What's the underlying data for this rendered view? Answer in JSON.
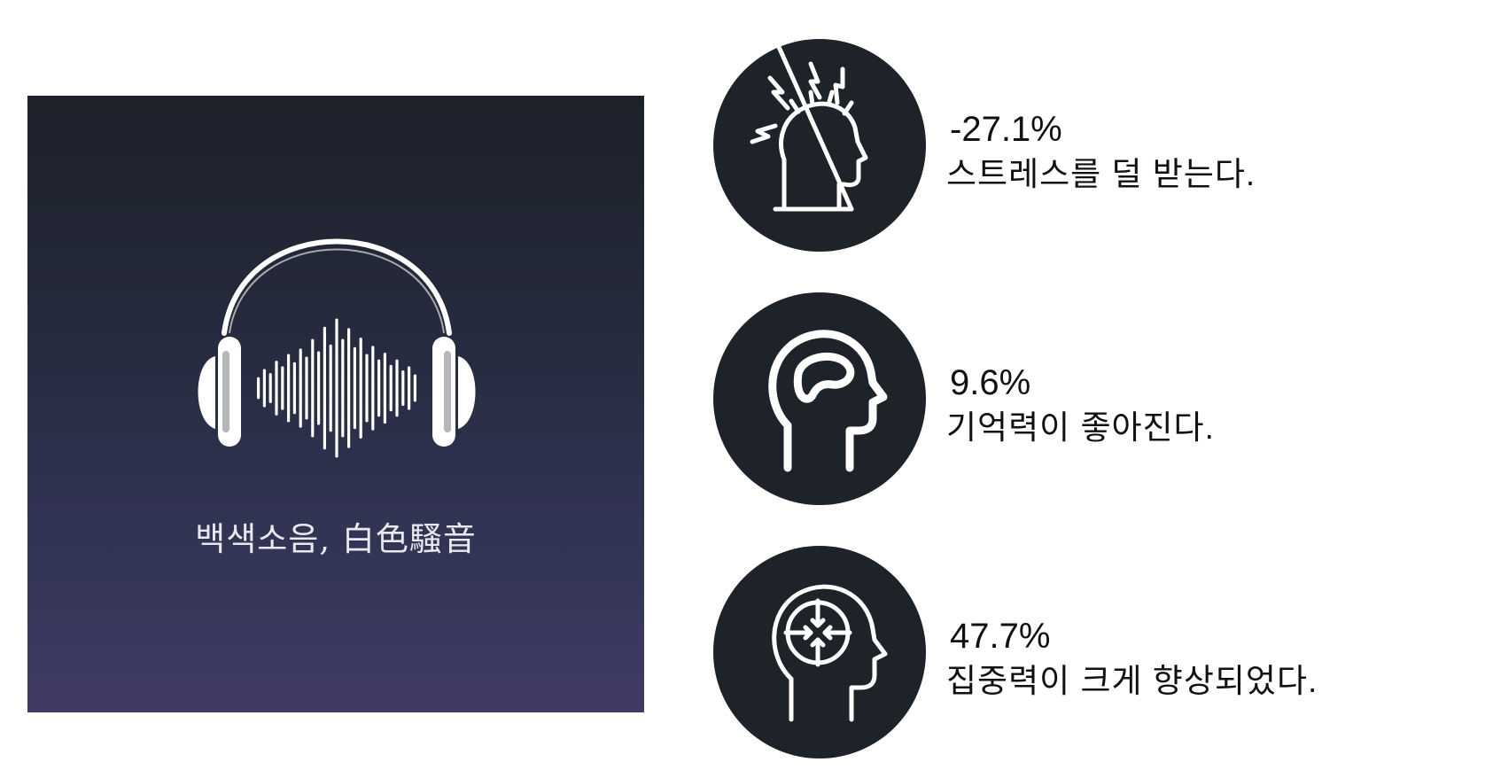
{
  "poster": {
    "caption": "백색소음, 白色騷音",
    "icon": "headphones-soundwave-icon"
  },
  "stats": [
    {
      "icon": "stressed-head-icon",
      "value": "-27.1%",
      "description": "스트레스를 덜 받는다."
    },
    {
      "icon": "brain-head-icon",
      "value": "9.6%",
      "description": "기억력이 좋아진다."
    },
    {
      "icon": "focus-head-icon",
      "value": "47.7%",
      "description": "집중력이 크게 향상되었다."
    }
  ],
  "colors": {
    "circle": "#1e2229",
    "poster_top": "#1d2129",
    "poster_bottom": "#413b66",
    "icon_stroke": "#ffffff"
  }
}
